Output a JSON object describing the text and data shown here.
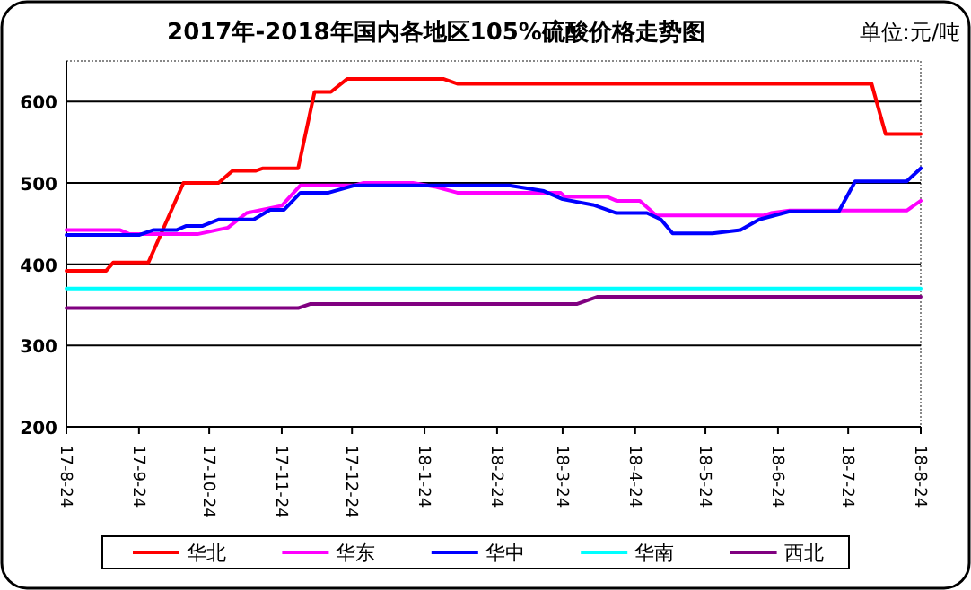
{
  "chart_data": {
    "type": "line",
    "title": "2017年-2018年国内各地区105%硫酸价格走势图",
    "annotations": [
      "单位:元/吨"
    ],
    "xlim": [
      "2017-08-24",
      "2018-08-24"
    ],
    "xticks": [
      {
        "value": "2017-08-24",
        "label": "17-8-24"
      },
      {
        "value": "2017-09-24",
        "label": "17-9-24"
      },
      {
        "value": "2017-10-24",
        "label": "17-10-24"
      },
      {
        "value": "2017-11-24",
        "label": "17-11-24"
      },
      {
        "value": "2017-12-24",
        "label": "17-12-24"
      },
      {
        "value": "2018-01-24",
        "label": "18-1-24"
      },
      {
        "value": "2018-02-24",
        "label": "18-2-24"
      },
      {
        "value": "2018-03-24",
        "label": "18-3-24"
      },
      {
        "value": "2018-04-24",
        "label": "18-4-24"
      },
      {
        "value": "2018-05-24",
        "label": "18-5-24"
      },
      {
        "value": "2018-06-24",
        "label": "18-6-24"
      },
      {
        "value": "2018-07-24",
        "label": "18-7-24"
      },
      {
        "value": "2018-08-24",
        "label": "18-8-24"
      }
    ],
    "ylim": [
      200,
      650
    ],
    "yticks": [
      200,
      300,
      400,
      500,
      600
    ],
    "grid": "y",
    "legend": "bottom",
    "marker": "none",
    "line_style": "solid",
    "series": [
      {
        "name": "华北",
        "color": "#ff0000",
        "x": [
          "2017-08-24",
          "2017-09-10",
          "2017-09-13",
          "2017-09-28",
          "2017-10-13",
          "2017-10-28",
          "2017-11-03",
          "2017-11-13",
          "2017-11-16",
          "2017-12-01",
          "2017-12-08",
          "2017-12-15",
          "2017-12-22",
          "2018-02-01",
          "2018-02-07",
          "2018-08-03",
          "2018-08-09",
          "2018-08-24"
        ],
        "values": [
          392,
          392,
          402,
          402,
          500,
          500,
          515,
          515,
          518,
          518,
          612,
          612,
          628,
          628,
          622,
          622,
          560,
          560
        ]
      },
      {
        "name": "华东",
        "color": "#ff00ff",
        "x": [
          "2017-08-24",
          "2017-09-16",
          "2017-09-20",
          "2017-10-19",
          "2017-10-24",
          "2017-11-01",
          "2017-11-09",
          "2017-11-24",
          "2017-12-02",
          "2017-12-25",
          "2017-12-29",
          "2018-01-19",
          "2018-01-29",
          "2018-02-07",
          "2018-03-23",
          "2018-03-25",
          "2018-04-12",
          "2018-04-16",
          "2018-04-26",
          "2018-05-03",
          "2018-06-18",
          "2018-06-21",
          "2018-06-29",
          "2018-08-18",
          "2018-08-24"
        ],
        "values": [
          442,
          442,
          437,
          437,
          440,
          445,
          463,
          472,
          497,
          497,
          500,
          500,
          495,
          488,
          488,
          483,
          483,
          478,
          478,
          460,
          460,
          463,
          466,
          466,
          478
        ]
      },
      {
        "name": "华中",
        "color": "#0000ff",
        "x": [
          "2017-08-24",
          "2017-09-24",
          "2017-09-30",
          "2017-10-10",
          "2017-10-14",
          "2017-10-21",
          "2017-10-28",
          "2017-11-12",
          "2017-11-19",
          "2017-11-25",
          "2017-12-02",
          "2017-12-14",
          "2017-12-25",
          "2018-03-01",
          "2018-03-16",
          "2018-03-24",
          "2018-04-06",
          "2018-04-16",
          "2018-04-29",
          "2018-05-05",
          "2018-05-10",
          "2018-05-27",
          "2018-06-08",
          "2018-06-16",
          "2018-06-29",
          "2018-07-20",
          "2018-07-27",
          "2018-08-18",
          "2018-08-24"
        ],
        "values": [
          436,
          436,
          442,
          442,
          447,
          447,
          455,
          455,
          467,
          467,
          488,
          488,
          497,
          497,
          490,
          480,
          473,
          463,
          463,
          455,
          438,
          438,
          442,
          455,
          465,
          465,
          502,
          502,
          518
        ]
      },
      {
        "name": "华南",
        "color": "#00ffff",
        "x": [
          "2017-08-24",
          "2018-08-24"
        ],
        "values": [
          370,
          370
        ]
      },
      {
        "name": "西北",
        "color": "#800080",
        "x": [
          "2017-08-24",
          "2017-12-01",
          "2017-12-06",
          "2018-03-30",
          "2018-04-08",
          "2018-08-24"
        ],
        "values": [
          346,
          346,
          351,
          351,
          360,
          360
        ]
      }
    ]
  }
}
